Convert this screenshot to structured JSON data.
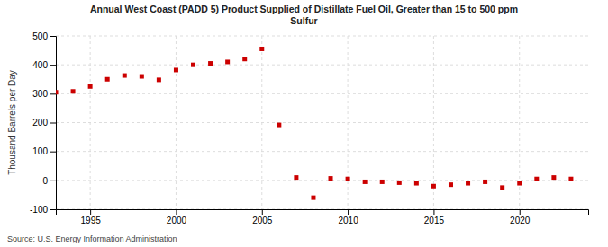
{
  "chart_data": {
    "type": "scatter",
    "title": "Annual West Coast (PADD 5) Product Supplied of Distillate Fuel Oil, Greater than 15 to 500 ppm\nSulfur",
    "ylabel": "Thousand Barrels per Day",
    "source": "Source: U.S. Energy Information Administration",
    "x": [
      1993,
      1994,
      1995,
      1996,
      1997,
      1998,
      1999,
      2000,
      2001,
      2002,
      2003,
      2004,
      2005,
      2006,
      2007,
      2008,
      2009,
      2010,
      2011,
      2012,
      2013,
      2014,
      2015,
      2016,
      2017,
      2018,
      2019,
      2020,
      2021,
      2022,
      2023
    ],
    "values": [
      305,
      308,
      325,
      350,
      363,
      360,
      348,
      382,
      400,
      405,
      410,
      420,
      455,
      192,
      10,
      -60,
      7,
      5,
      -5,
      -5,
      -8,
      -10,
      -20,
      -15,
      -10,
      -5,
      -25,
      -10,
      5,
      10,
      5
    ],
    "color": "#cc0000",
    "marker": "square",
    "xlim": [
      1993.0,
      2024.0
    ],
    "ylim": [
      -100,
      500
    ],
    "xticks": [
      1995,
      2000,
      2005,
      2010,
      2015,
      2020
    ],
    "yticks": [
      -100,
      0,
      100,
      200,
      300,
      400,
      500
    ],
    "grid": true
  }
}
